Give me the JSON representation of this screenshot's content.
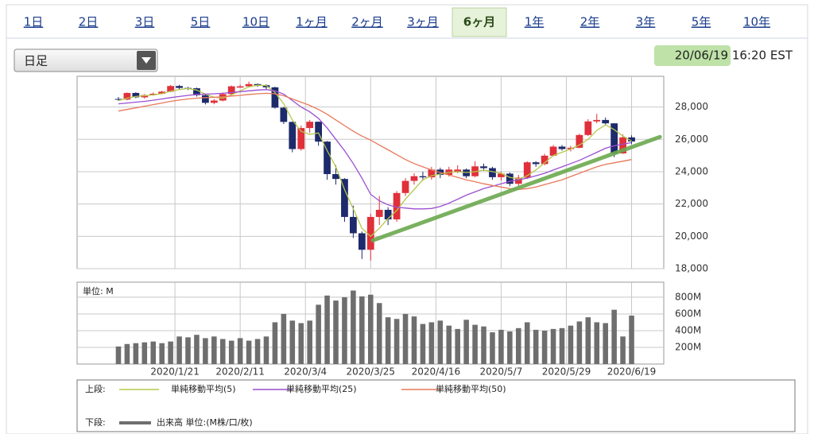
{
  "tabs": [
    "1日",
    "2日",
    "3日",
    "5日",
    "10日",
    "1ヶ月",
    "2ヶ月",
    "3ヶ月",
    "6ヶ月",
    "1年",
    "2年",
    "3年",
    "5年",
    "10年"
  ],
  "active_tab": 8,
  "period_select": "日足",
  "timestamp": "20/06/19 16:20 EST",
  "legend": {
    "upper": "上段:",
    "lower": "下段:"
  },
  "chart_data": [
    {
      "type": "candlestick",
      "x": [
        1,
        3,
        5,
        7,
        9,
        11,
        13,
        15,
        17,
        19,
        21,
        23,
        25,
        27,
        29,
        31,
        33,
        35,
        37,
        39,
        41,
        43,
        45,
        47,
        49,
        51,
        53,
        55,
        57,
        59,
        61,
        63,
        65,
        67,
        69,
        71,
        73,
        75,
        77,
        79,
        81,
        83,
        85,
        87,
        89,
        91,
        93,
        95,
        97,
        99,
        101,
        103,
        105,
        107,
        109,
        111,
        113,
        115,
        117,
        119
      ],
      "open": [
        28500,
        28460,
        28870,
        28600,
        28740,
        28820,
        28950,
        29300,
        29180,
        29160,
        28730,
        28260,
        28400,
        28800,
        29200,
        29280,
        29420,
        29350,
        29220,
        27960,
        27080,
        25400,
        26700,
        27090,
        25860,
        23850,
        23550,
        21200,
        20190,
        19170,
        21200,
        21640,
        21050,
        22680,
        23430,
        23720,
        23650,
        24130,
        23800,
        24000,
        24130,
        23720,
        24330,
        24220,
        23660,
        23880,
        23250,
        23630,
        24580,
        24470,
        24990,
        25550,
        25400,
        25480,
        26270,
        27110,
        27200,
        26990,
        25130,
        26120
      ],
      "high": [
        28620,
        28900,
        28920,
        28800,
        28900,
        29000,
        29370,
        29370,
        29250,
        29200,
        28800,
        28500,
        28900,
        29330,
        29380,
        29570,
        29450,
        29400,
        29250,
        28000,
        27100,
        26850,
        27200,
        27100,
        25900,
        24400,
        23600,
        21900,
        20300,
        21400,
        22500,
        21800,
        22800,
        23600,
        23900,
        24000,
        24300,
        24250,
        24300,
        24400,
        24200,
        24650,
        24500,
        24300,
        24000,
        23950,
        23800,
        24650,
        24650,
        25100,
        25650,
        25650,
        25600,
        26350,
        27250,
        27580,
        27350,
        27000,
        26300,
        26250
      ],
      "low": [
        28380,
        28420,
        28550,
        28520,
        28700,
        28780,
        28920,
        29100,
        29050,
        28650,
        28160,
        28170,
        28350,
        28750,
        29200,
        29250,
        29250,
        29100,
        27900,
        26950,
        25200,
        25300,
        26400,
        25600,
        23500,
        23200,
        20900,
        19900,
        18600,
        18500,
        20700,
        20700,
        20900,
        22500,
        23200,
        23450,
        23500,
        23600,
        23700,
        23900,
        23600,
        23650,
        24050,
        23500,
        23450,
        23100,
        23100,
        23550,
        24300,
        24400,
        24950,
        25300,
        25250,
        25450,
        26200,
        27000,
        26900,
        24900,
        25100,
        25700
      ],
      "close": [
        28460,
        28870,
        28600,
        28740,
        28820,
        28950,
        29300,
        29180,
        29160,
        28730,
        28260,
        28400,
        28800,
        29280,
        29280,
        29420,
        29350,
        29220,
        27960,
        27080,
        25400,
        26700,
        27090,
        25860,
        23850,
        23550,
        21200,
        20190,
        19170,
        21200,
        21640,
        21050,
        22680,
        23430,
        23720,
        23650,
        24130,
        23800,
        24130,
        24130,
        23720,
        24330,
        24220,
        23660,
        23880,
        23250,
        23630,
        24580,
        24470,
        24990,
        25550,
        25400,
        25480,
        26270,
        27110,
        27200,
        26990,
        25130,
        26120,
        25870
      ],
      "up_color": "#e0303a",
      "down_color": "#1d2a6b",
      "series": [
        {
          "name": "単純移動平均(5)",
          "color": "#b5c84a",
          "values": [
            28400,
            28550,
            28650,
            28700,
            28750,
            28830,
            28980,
            29080,
            29150,
            29050,
            28800,
            28600,
            28550,
            28750,
            29000,
            29250,
            29350,
            29330,
            28900,
            28200,
            27200,
            26500,
            26300,
            26400,
            25300,
            24300,
            22900,
            21700,
            20500,
            20000,
            20500,
            21100,
            21600,
            22300,
            22900,
            23500,
            23750,
            23850,
            23950,
            24000,
            23950,
            24000,
            24100,
            24000,
            23900,
            23650,
            23550,
            23750,
            24100,
            24550,
            25000,
            25200,
            25400,
            25650,
            26000,
            26550,
            26900,
            26600,
            26200,
            25900
          ]
        },
        {
          "name": "単純移動平均(25)",
          "color": "#9b4fd0",
          "values": [
            28200,
            28250,
            28300,
            28350,
            28420,
            28500,
            28580,
            28650,
            28720,
            28780,
            28800,
            28820,
            28850,
            28900,
            28950,
            29000,
            29050,
            29080,
            29000,
            28800,
            28400,
            28000,
            27700,
            27300,
            26700,
            26000,
            25300,
            24500,
            23600,
            22600,
            22200,
            21950,
            21800,
            21750,
            21700,
            21700,
            21720,
            21850,
            22050,
            22300,
            22550,
            22750,
            22950,
            23100,
            23250,
            23400,
            23500,
            23600,
            23750,
            23900,
            24100,
            24300,
            24500,
            24700,
            24950,
            25200,
            25450,
            25600,
            25700,
            25800
          ]
        },
        {
          "name": "単純移動平均(50)",
          "color": "#e8785a",
          "values": [
            27750,
            27850,
            27950,
            28050,
            28150,
            28250,
            28350,
            28430,
            28500,
            28550,
            28580,
            28600,
            28630,
            28680,
            28720,
            28780,
            28820,
            28850,
            28820,
            28700,
            28500,
            28300,
            28100,
            27850,
            27550,
            27200,
            26850,
            26500,
            26200,
            25950,
            25650,
            25350,
            25050,
            24750,
            24500,
            24300,
            24100,
            23950,
            23800,
            23650,
            23500,
            23380,
            23250,
            23150,
            23050,
            22950,
            22900,
            22950,
            23050,
            23200,
            23350,
            23500,
            23700,
            23900,
            24100,
            24300,
            24450,
            24550,
            24650,
            24750
          ]
        }
      ],
      "trend_line": {
        "x": [
          59.5,
          125.5
        ],
        "values": [
          19750,
          26150
        ],
        "color": "#6aa84f"
      },
      "xlim": [
        -8.5,
        126.4
      ],
      "xticks": [
        14,
        29,
        44,
        59,
        74,
        89,
        104,
        119
      ],
      "ylim": [
        18000,
        29900
      ],
      "yticks": [
        {
          "value": 18000,
          "label": "18,000"
        },
        {
          "value": 20000,
          "label": "20,000"
        },
        {
          "value": 22000,
          "label": "22,000"
        },
        {
          "value": 24000,
          "label": "24,000"
        },
        {
          "value": 26000,
          "label": "26,000"
        },
        {
          "value": 28000,
          "label": "28,000"
        }
      ],
      "grid": true
    },
    {
      "type": "bar",
      "unit_label": "単位: M",
      "x": [
        1,
        3,
        5,
        7,
        9,
        11,
        13,
        15,
        17,
        19,
        21,
        23,
        25,
        27,
        29,
        31,
        33,
        35,
        37,
        39,
        41,
        43,
        45,
        47,
        49,
        51,
        53,
        55,
        57,
        59,
        61,
        63,
        65,
        67,
        69,
        71,
        73,
        75,
        77,
        79,
        81,
        83,
        85,
        87,
        89,
        91,
        93,
        95,
        97,
        99,
        101,
        103,
        105,
        107,
        109,
        111,
        113,
        115,
        117,
        119
      ],
      "series": [
        {
          "name": "出来高 単位:(M株/口/枚)",
          "color": "#6e6e6e",
          "values": [
            210,
            240,
            250,
            260,
            270,
            250,
            270,
            330,
            320,
            350,
            310,
            330,
            300,
            280,
            310,
            280,
            300,
            330,
            500,
            600,
            520,
            490,
            520,
            710,
            820,
            760,
            800,
            880,
            810,
            830,
            730,
            560,
            540,
            600,
            570,
            480,
            500,
            520,
            460,
            420,
            530,
            470,
            450,
            380,
            410,
            390,
            430,
            500,
            410,
            400,
            420,
            430,
            460,
            510,
            560,
            500,
            490,
            650,
            330,
            580
          ]
        }
      ],
      "xlim": [
        -8.5,
        126.4
      ],
      "xticks": [
        {
          "value": 14,
          "label": "2020/1/21"
        },
        {
          "value": 29,
          "label": "2020/2/11"
        },
        {
          "value": 44,
          "label": "2020/3/4"
        },
        {
          "value": 59,
          "label": "2020/3/25"
        },
        {
          "value": 74,
          "label": "2020/4/16"
        },
        {
          "value": 89,
          "label": "2020/5/7"
        },
        {
          "value": 104,
          "label": "2020/5/29"
        },
        {
          "value": 119,
          "label": "2020/6/19"
        }
      ],
      "ylim": [
        0,
        980
      ],
      "yticks": [
        {
          "value": 200,
          "label": "200M"
        },
        {
          "value": 400,
          "label": "400M"
        },
        {
          "value": 600,
          "label": "600M"
        },
        {
          "value": 800,
          "label": "800M"
        }
      ],
      "grid": true
    }
  ]
}
